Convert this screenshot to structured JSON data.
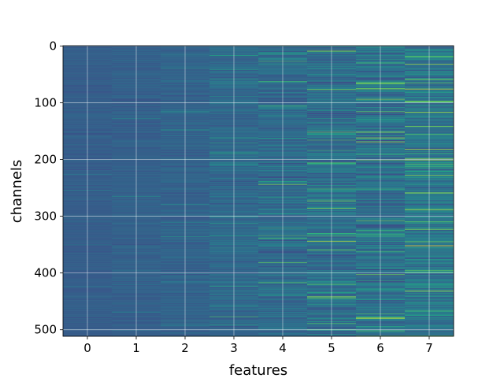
{
  "chart_data": {
    "type": "heatmap",
    "title": "",
    "xlabel": "features",
    "ylabel": "channels",
    "x_categories": [
      "0",
      "1",
      "2",
      "3",
      "4",
      "5",
      "6",
      "7"
    ],
    "y_ticks": [
      0,
      100,
      200,
      300,
      400,
      500
    ],
    "y_tick_labels": [
      "0",
      "100",
      "200",
      "300",
      "400",
      "500"
    ],
    "xlim": [
      -0.5,
      7.5
    ],
    "ylim": [
      511.5,
      -0.5
    ],
    "n_channels": 512,
    "grid": true,
    "colormap": "viridis",
    "colormap_stops": [
      "#440154",
      "#414487",
      "#2a788e",
      "#22a884",
      "#7ad151",
      "#fde725"
    ],
    "feature_value_profile": [
      {
        "feature": "0",
        "mean": 0.3,
        "spread": 0.06
      },
      {
        "feature": "1",
        "mean": 0.31,
        "spread": 0.07
      },
      {
        "feature": "2",
        "mean": 0.32,
        "spread": 0.09
      },
      {
        "feature": "3",
        "mean": 0.34,
        "spread": 0.13
      },
      {
        "feature": "4",
        "mean": 0.35,
        "spread": 0.18
      },
      {
        "feature": "5",
        "mean": 0.36,
        "spread": 0.22
      },
      {
        "feature": "6",
        "mean": 0.37,
        "spread": 0.24
      },
      {
        "feature": "7",
        "mean": 0.4,
        "spread": 0.24
      }
    ]
  }
}
